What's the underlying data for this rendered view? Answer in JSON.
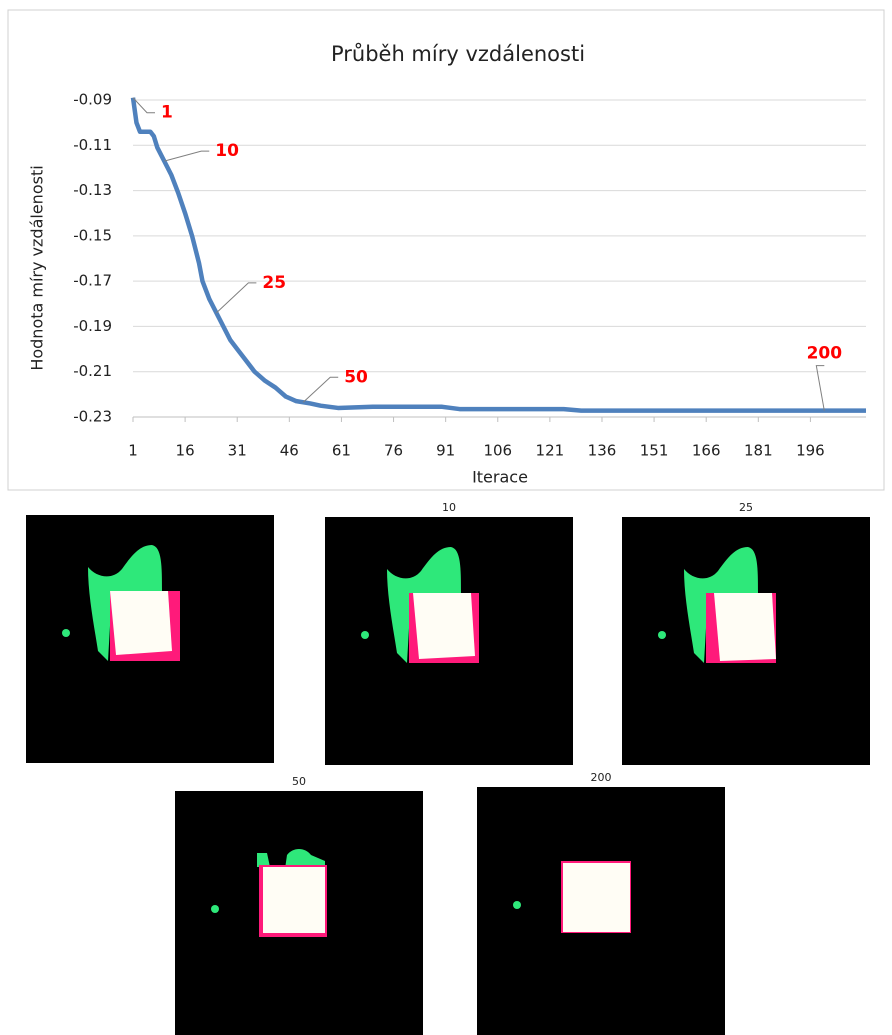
{
  "chart_data": {
    "type": "line",
    "title": "Průběh míry vzdálenosti",
    "x_label": "Iterace",
    "y_label": "Hodnota míry vzdálenosti",
    "x": [
      1,
      2,
      3,
      6,
      7,
      8,
      10,
      12,
      14,
      16,
      18,
      20,
      21,
      23,
      26,
      29,
      31,
      33,
      36,
      39,
      42,
      45,
      48,
      52,
      55,
      60,
      70,
      90,
      95,
      125,
      130,
      212
    ],
    "series": [
      {
        "color": "#4f81bd",
        "values": [
          -0.089,
          -0.1,
          -0.104,
          -0.104,
          -0.106,
          -0.111,
          -0.117,
          -0.123,
          -0.131,
          -0.14,
          -0.15,
          -0.162,
          -0.17,
          -0.178,
          -0.187,
          -0.196,
          -0.2,
          -0.204,
          -0.21,
          -0.214,
          -0.217,
          -0.221,
          -0.223,
          -0.224,
          -0.225,
          -0.226,
          -0.2255,
          -0.2255,
          -0.2265,
          -0.2265,
          -0.2272,
          -0.2272
        ]
      }
    ],
    "xlim": [
      1,
      212
    ],
    "xticks": [
      1,
      16,
      31,
      46,
      61,
      76,
      91,
      106,
      121,
      136,
      151,
      166,
      181,
      196
    ],
    "ylim": [
      -0.23,
      -0.09
    ],
    "yticks": [
      -0.09,
      -0.11,
      -0.13,
      -0.15,
      -0.17,
      -0.19,
      -0.21,
      -0.23
    ],
    "grid": true,
    "annotations": [
      {
        "label": "1",
        "x": 1,
        "y": -0.089
      },
      {
        "label": "10",
        "x": 10,
        "y": -0.117
      },
      {
        "label": "25",
        "x": 25,
        "y": -0.184
      },
      {
        "label": "50",
        "x": 50,
        "y": -0.2235
      },
      {
        "label": "200",
        "x": 200,
        "y": -0.2272
      }
    ],
    "annotation_color": "#ff0000"
  },
  "panels": [
    {
      "title": "10"
    },
    {
      "title": "25"
    },
    {
      "title": "50"
    },
    {
      "title": "200"
    }
  ]
}
